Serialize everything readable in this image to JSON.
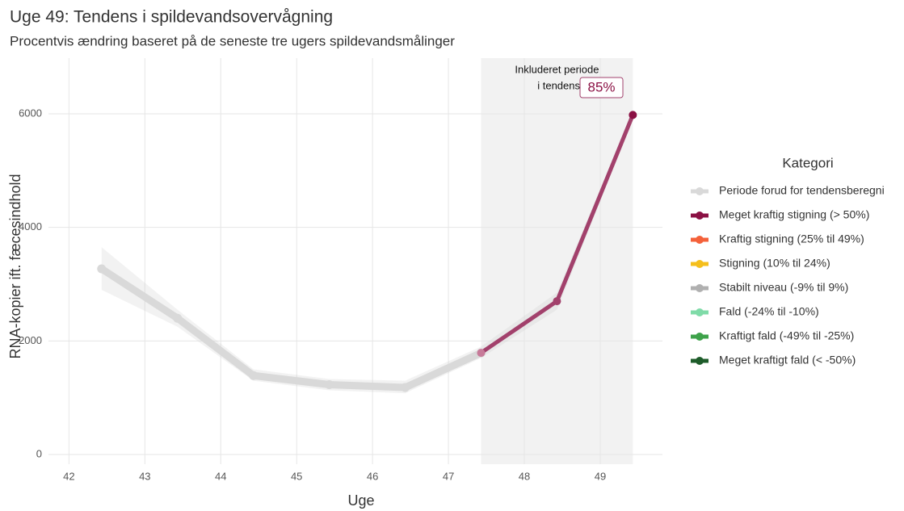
{
  "chart_data": {
    "type": "line",
    "title": "Uge 49: Tendens i spildevandsovervågning",
    "subtitle": "Procentvis ændring baseret på de seneste tre ugers spildevandsmålinger",
    "x_label": "Uge",
    "y_label": "RNA-kopier ift. fæcesindhold",
    "xlim": [
      41.73,
      49.82
    ],
    "ylim": [
      -170,
      6980
    ],
    "xticks": [
      42,
      43,
      44,
      45,
      46,
      47,
      48,
      49
    ],
    "yticks": [
      0,
      2000,
      4000,
      6000
    ],
    "grid": true,
    "series": [
      {
        "name": "Periode forud for tendensberegni",
        "color": "#d9d9d9",
        "legend_color": "#d9d9d9",
        "x": [
          42.43,
          43.43,
          44.43,
          45.43,
          46.43,
          47.43
        ],
        "values": [
          3270,
          2400,
          1390,
          1230,
          1180,
          1790
        ],
        "lower": [
          2900,
          2250,
          1300,
          1130,
          1080,
          1700
        ],
        "upper": [
          3650,
          2550,
          1500,
          1330,
          1300,
          1900
        ]
      },
      {
        "name": "Meget kraftig stigning (> 50%)",
        "color": "#a2416c",
        "legend_color": "#8b1144",
        "x": [
          47.43,
          48.43,
          49.43
        ],
        "values": [
          1790,
          2700,
          5980
        ],
        "lower": [
          1700,
          2550,
          5900
        ],
        "upper": [
          1900,
          2850,
          6050
        ]
      }
    ],
    "legend_title": "Kategori",
    "other_categories": [
      {
        "name": "Kraftig stigning (25% til 49%)",
        "color": "#f4613a"
      },
      {
        "name": "Stigning (10% til 24%)",
        "color": "#f5bf1c"
      },
      {
        "name": "Stabilt niveau (-9% til 9%)",
        "color": "#b0b0b0"
      },
      {
        "name": "Fald (-24% til -10%)",
        "color": "#7fdba8"
      },
      {
        "name": "Kraftigt fald (-49% til -25%)",
        "color": "#3ea24a"
      },
      {
        "name": "Meget kraftigt fald (< -50%)",
        "color": "#1e5c2a"
      }
    ],
    "highlight": {
      "x_range": [
        47.43,
        49.43
      ],
      "label_lines": [
        "Inkluderet periode",
        "i tendens"
      ],
      "change_label": "85%"
    }
  }
}
